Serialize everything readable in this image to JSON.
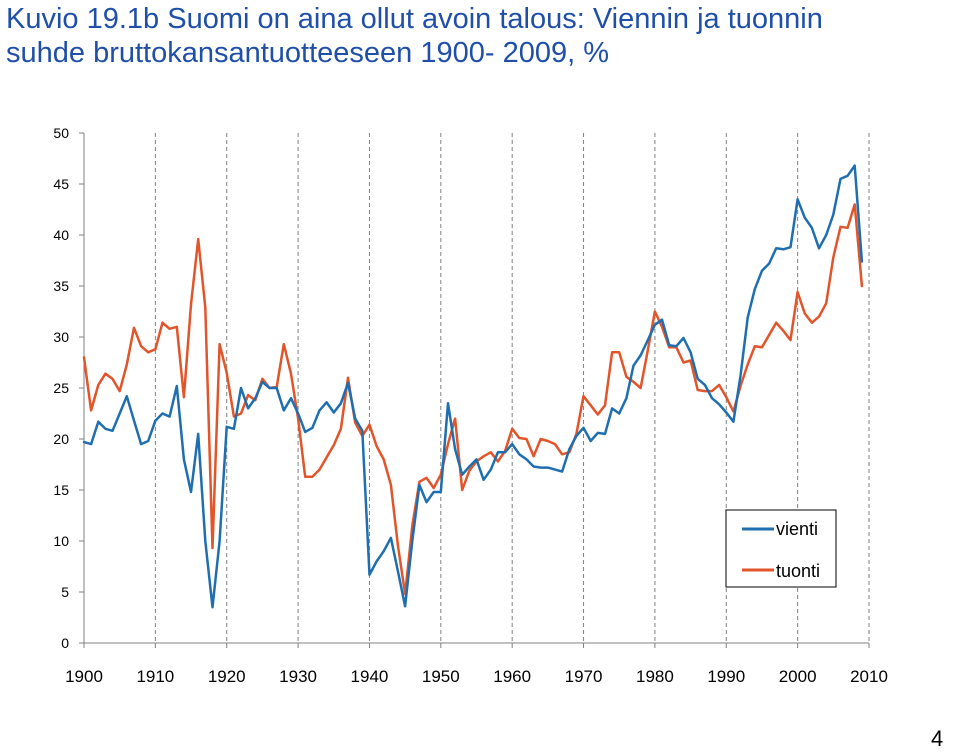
{
  "title_lines": [
    "Kuvio 19.1b Suomi on aina ollut avoin talous: Viennin ja tuonnin",
    "suhde bruttokansantuotteeseen 1900- 2009, %"
  ],
  "page_number": "4",
  "colors": {
    "title": "#1f4fa8",
    "vienti": "#1f6fb0",
    "tuonti": "#e2552b",
    "grid": "#808080"
  },
  "chart_data": {
    "type": "line",
    "title": "Kuvio 19.1b Suomi on aina ollut avoin talous: Viennin ja tuonnin suhde bruttokansantuotteeseen 1900- 2009, %",
    "xlabel": "",
    "ylabel": "",
    "xlim": [
      1900,
      2010
    ],
    "ylim": [
      0,
      50
    ],
    "x_ticks": [
      1900,
      1910,
      1920,
      1930,
      1940,
      1950,
      1960,
      1970,
      1980,
      1990,
      2000,
      2010
    ],
    "y_ticks": [
      0,
      5,
      10,
      15,
      20,
      25,
      30,
      35,
      40,
      45,
      50
    ],
    "grid": "vertical dashed at each decade",
    "legend_position": "bottom-right",
    "x": [
      1900,
      1901,
      1902,
      1903,
      1904,
      1905,
      1906,
      1907,
      1908,
      1909,
      1910,
      1911,
      1912,
      1913,
      1914,
      1915,
      1916,
      1917,
      1918,
      1919,
      1920,
      1921,
      1922,
      1923,
      1924,
      1925,
      1926,
      1927,
      1928,
      1929,
      1930,
      1931,
      1932,
      1933,
      1934,
      1935,
      1936,
      1937,
      1938,
      1939,
      1940,
      1941,
      1942,
      1943,
      1944,
      1945,
      1946,
      1947,
      1948,
      1949,
      1950,
      1951,
      1952,
      1953,
      1954,
      1955,
      1956,
      1957,
      1958,
      1959,
      1960,
      1961,
      1962,
      1963,
      1964,
      1965,
      1966,
      1967,
      1968,
      1969,
      1970,
      1971,
      1972,
      1973,
      1974,
      1975,
      1976,
      1977,
      1978,
      1979,
      1980,
      1981,
      1982,
      1983,
      1984,
      1985,
      1986,
      1987,
      1988,
      1989,
      1990,
      1991,
      1992,
      1993,
      1994,
      1995,
      1996,
      1997,
      1998,
      1999,
      2000,
      2001,
      2002,
      2003,
      2004,
      2005,
      2006,
      2007,
      2008,
      2009
    ],
    "series": [
      {
        "name": "vienti",
        "values": [
          19.7,
          19.5,
          21.7,
          21.0,
          20.8,
          22.5,
          24.2,
          21.8,
          19.5,
          19.8,
          21.8,
          22.5,
          22.2,
          25.2,
          18.0,
          14.8,
          20.5,
          10.0,
          3.5,
          10.0,
          21.2,
          21.0,
          25.0,
          23.0,
          24.0,
          25.6,
          25.0,
          25.0,
          22.8,
          24.0,
          22.5,
          20.7,
          21.1,
          22.8,
          23.6,
          22.6,
          23.5,
          25.5,
          22.0,
          20.8,
          6.7,
          8.0,
          9.0,
          10.3,
          7.0,
          3.6,
          10.0,
          15.5,
          13.8,
          14.8,
          14.8,
          23.5,
          19.0,
          16.5,
          17.3,
          18.0,
          16.0,
          17.0,
          18.7,
          18.7,
          19.5,
          18.5,
          18.0,
          17.3,
          17.2,
          17.2,
          17.0,
          16.8,
          19.0,
          20.3,
          21.1,
          19.8,
          20.6,
          20.5,
          23.0,
          22.5,
          24.0,
          27.2,
          28.2,
          29.7,
          31.2,
          31.7,
          29.2,
          29.1,
          29.9,
          28.5,
          25.9,
          25.3,
          24.0,
          23.4,
          22.6,
          21.7,
          26.2,
          31.9,
          34.7,
          36.5,
          37.2,
          38.7,
          38.6,
          38.8,
          43.5,
          41.7,
          40.7,
          38.7,
          40.0,
          42.0,
          45.5,
          45.8,
          46.8,
          37.4
        ]
      },
      {
        "name": "tuonti",
        "values": [
          28.0,
          22.8,
          25.3,
          26.4,
          25.9,
          24.7,
          27.3,
          30.9,
          29.1,
          28.5,
          28.8,
          31.4,
          30.8,
          31.0,
          24.1,
          33.2,
          39.6,
          32.9,
          9.3,
          29.3,
          26.5,
          22.2,
          22.5,
          24.3,
          23.8,
          25.9,
          25.0,
          25.1,
          29.3,
          26.4,
          22.0,
          16.3,
          16.3,
          17.0,
          18.2,
          19.4,
          21.0,
          26.0,
          21.6,
          20.3,
          21.4,
          19.3,
          18.0,
          15.5,
          9.5,
          4.8,
          11.5,
          15.8,
          16.2,
          15.2,
          16.5,
          19.5,
          22.0,
          15.0,
          16.9,
          17.8,
          18.3,
          18.7,
          17.8,
          18.8,
          21.0,
          20.1,
          20.0,
          18.3,
          20.0,
          19.8,
          19.5,
          18.5,
          18.7,
          20.5,
          24.2,
          23.3,
          22.4,
          23.3,
          28.5,
          28.5,
          26.1,
          25.6,
          25.0,
          28.7,
          32.5,
          31.0,
          29.0,
          29.0,
          27.5,
          27.7,
          24.8,
          24.7,
          24.7,
          25.3,
          24.1,
          22.7,
          25.2,
          27.3,
          29.1,
          29.0,
          30.2,
          31.4,
          30.6,
          29.7,
          34.4,
          32.3,
          31.4,
          32.0,
          33.3,
          37.8,
          40.8,
          40.7,
          43.0,
          35.0
        ]
      }
    ]
  }
}
